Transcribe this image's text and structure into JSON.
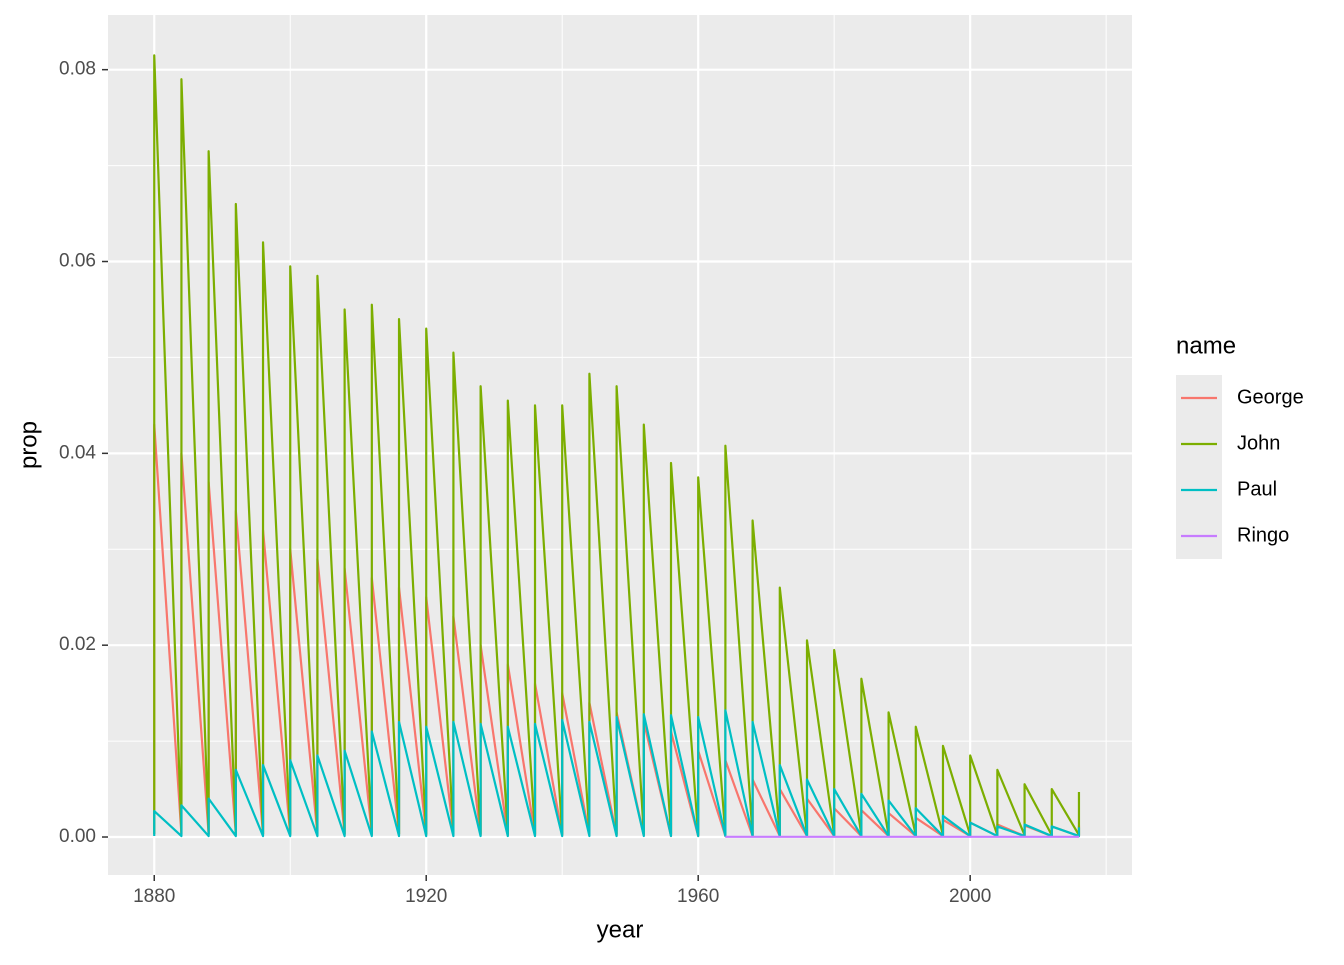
{
  "chart_data": {
    "type": "line",
    "x_label": "year",
    "y_label": "prop",
    "legend_title": "name",
    "legend_position": "right",
    "xlim": [
      1873.2,
      2023.8
    ],
    "ylim": [
      -0.00396,
      0.0857
    ],
    "xticks": [
      1880,
      1920,
      1960,
      2000
    ],
    "yticks": [
      {
        "value": 0,
        "label": "0.00"
      },
      0.02,
      0.04,
      0.06,
      0.08
    ],
    "xminor": [
      1900,
      1940,
      1980,
      2020
    ],
    "yminor": [
      0.01,
      0.03,
      0.05,
      0.07
    ],
    "grid": true,
    "series": [
      {
        "name": "George",
        "color": "#F8766D",
        "x": [
          1880,
          1880,
          1884,
          1884,
          1888,
          1888,
          1892,
          1892,
          1896,
          1896,
          1900,
          1900,
          1904,
          1904,
          1908,
          1908,
          1912,
          1912,
          1916,
          1916,
          1920,
          1920,
          1924,
          1924,
          1928,
          1928,
          1932,
          1932,
          1936,
          1936,
          1940,
          1940,
          1944,
          1944,
          1948,
          1948,
          1952,
          1952,
          1956,
          1956,
          1960,
          1960,
          1964,
          1964,
          1968,
          1968,
          1972,
          1972,
          1976,
          1976,
          1980,
          1980,
          1984,
          1984,
          1988,
          1988,
          1992,
          1992,
          1996,
          1996,
          2000,
          2000,
          2004,
          2004,
          2008,
          2008,
          2012,
          2012,
          2016,
          2016
        ],
        "values": [
          0.0003,
          0.043,
          0.0003,
          0.04,
          0.0003,
          0.037,
          0.0003,
          0.034,
          0.0003,
          0.032,
          0.0003,
          0.03,
          0.0003,
          0.029,
          0.0003,
          0.028,
          0.0003,
          0.027,
          0.0003,
          0.026,
          0.0003,
          0.025,
          0.0003,
          0.023,
          0.0002,
          0.02,
          0.0002,
          0.018,
          0.0002,
          0.016,
          0.0002,
          0.015,
          0.0002,
          0.014,
          0.0002,
          0.013,
          0.0002,
          0.012,
          0.0001,
          0.011,
          0.0001,
          0.009,
          0.0001,
          0.008,
          0.0001,
          0.006,
          0.0001,
          0.005,
          0.0001,
          0.004,
          0.0001,
          0.003,
          0.0001,
          0.0028,
          0.0001,
          0.0025,
          0.0001,
          0.002,
          0.0001,
          0.0018,
          0.0001,
          0.0015,
          0.0001,
          0.0013,
          0.0001,
          0.0012,
          0.0001,
          0.0011,
          0.0001,
          0.0012
        ]
      },
      {
        "name": "John",
        "color": "#7CAE00",
        "x": [
          1880,
          1880,
          1884,
          1884,
          1888,
          1888,
          1892,
          1892,
          1896,
          1896,
          1900,
          1900,
          1904,
          1904,
          1908,
          1908,
          1912,
          1912,
          1916,
          1916,
          1920,
          1920,
          1924,
          1924,
          1928,
          1928,
          1932,
          1932,
          1936,
          1936,
          1940,
          1940,
          1944,
          1944,
          1948,
          1948,
          1952,
          1952,
          1956,
          1956,
          1960,
          1960,
          1964,
          1964,
          1968,
          1968,
          1972,
          1972,
          1976,
          1976,
          1980,
          1980,
          1984,
          1984,
          1988,
          1988,
          1992,
          1992,
          1996,
          1996,
          2000,
          2000,
          2004,
          2004,
          2008,
          2008,
          2012,
          2012,
          2016,
          2016
        ],
        "values": [
          0.0003,
          0.0815,
          0.0003,
          0.079,
          0.0003,
          0.0715,
          0.0003,
          0.066,
          0.0003,
          0.062,
          0.0003,
          0.0595,
          0.0003,
          0.0585,
          0.0003,
          0.055,
          0.0003,
          0.0555,
          0.0003,
          0.054,
          0.0003,
          0.053,
          0.0003,
          0.0505,
          0.0003,
          0.047,
          0.0003,
          0.0455,
          0.0003,
          0.045,
          0.0003,
          0.045,
          0.0003,
          0.0483,
          0.0003,
          0.047,
          0.0003,
          0.043,
          0.0003,
          0.039,
          0.0002,
          0.0375,
          0.0002,
          0.0408,
          0.0002,
          0.033,
          0.0002,
          0.026,
          0.0002,
          0.0205,
          0.0002,
          0.0195,
          0.0002,
          0.0165,
          0.0002,
          0.013,
          0.0002,
          0.0115,
          0.0002,
          0.0095,
          0.0002,
          0.0085,
          0.0002,
          0.007,
          0.0002,
          0.0055,
          0.0002,
          0.005,
          0.0002,
          0.0047
        ]
      },
      {
        "name": "Paul",
        "color": "#00BFC4",
        "x": [
          1880,
          1880,
          1884,
          1884,
          1888,
          1888,
          1892,
          1892,
          1896,
          1896,
          1900,
          1900,
          1904,
          1904,
          1908,
          1908,
          1912,
          1912,
          1916,
          1916,
          1920,
          1920,
          1924,
          1924,
          1928,
          1928,
          1932,
          1932,
          1936,
          1936,
          1940,
          1940,
          1944,
          1944,
          1948,
          1948,
          1952,
          1952,
          1956,
          1956,
          1960,
          1960,
          1964,
          1964,
          1968,
          1968,
          1972,
          1972,
          1976,
          1976,
          1980,
          1980,
          1984,
          1984,
          1988,
          1988,
          1992,
          1992,
          1996,
          1996,
          2000,
          2000,
          2004,
          2004,
          2008,
          2008,
          2012,
          2012,
          2016,
          2016
        ],
        "values": [
          0.0001,
          0.0027,
          0.0001,
          0.0033,
          0.0001,
          0.004,
          0.0001,
          0.007,
          0.0001,
          0.0075,
          0.0001,
          0.008,
          0.0001,
          0.0085,
          0.0001,
          0.009,
          0.0001,
          0.011,
          0.0001,
          0.012,
          0.0001,
          0.0115,
          0.0001,
          0.012,
          0.0001,
          0.0118,
          0.0001,
          0.0115,
          0.0001,
          0.0118,
          0.0001,
          0.0122,
          0.0001,
          0.012,
          0.0001,
          0.0125,
          0.0001,
          0.0128,
          0.0001,
          0.0127,
          0.0001,
          0.0125,
          0.0001,
          0.0132,
          0.0001,
          0.012,
          0.0001,
          0.0075,
          0.0001,
          0.006,
          0.0001,
          0.005,
          0.0001,
          0.0045,
          0.0001,
          0.0038,
          0.0001,
          0.003,
          0.0001,
          0.0022,
          0.0001,
          0.0015,
          0.0001,
          0.0011,
          0.0001,
          0.0013,
          0.0001,
          0.0011,
          0.0001,
          0.001
        ]
      },
      {
        "name": "Ringo",
        "color": "#C77CFF",
        "x": [
          1964,
          1968,
          1972,
          1976,
          1980,
          1984,
          1988,
          1992,
          1996,
          2000,
          2004,
          2008,
          2012,
          2016
        ],
        "values": [
          2e-05,
          2e-05,
          2e-05,
          2e-05,
          2e-05,
          2e-05,
          2e-05,
          2e-05,
          2e-05,
          2e-05,
          2e-05,
          2e-05,
          2e-05,
          2e-05
        ]
      }
    ]
  }
}
